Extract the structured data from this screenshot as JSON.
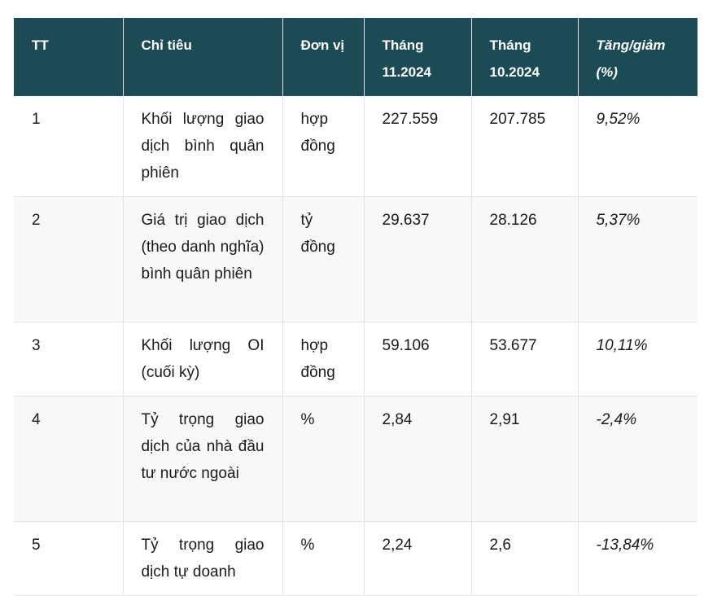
{
  "headers": [
    "TT",
    "Chỉ tiêu",
    "Đơn vị",
    "Tháng 11.2024",
    "Tháng 10.2024",
    "Tăng/giảm (%)"
  ],
  "rows": [
    {
      "tt": "1",
      "chi_tieu": "Khối lượng giao dịch bình quân phiên",
      "don_vi": "hợp đồng",
      "thang_11": "227.559",
      "thang_10": "207.785",
      "tang_giam": "9,52%"
    },
    {
      "tt": "2",
      "chi_tieu": "Giá trị giao dịch (theo danh nghĩa) bình quân phiên",
      "don_vi": "tỷ đồng",
      "thang_11": "29.637",
      "thang_10": "28.126",
      "tang_giam": "5,37%"
    },
    {
      "tt": "3",
      "chi_tieu": "Khối lượng OI (cuối kỳ)",
      "don_vi": "hợp đồng",
      "thang_11": "59.106",
      "thang_10": "53.677",
      "tang_giam": "10,11%"
    },
    {
      "tt": "4",
      "chi_tieu": "Tỷ trọng giao dịch của nhà đầu tư nước ngoài",
      "don_vi": "%",
      "thang_11": "2,84",
      "thang_10": "2,91",
      "tang_giam": "-2,4%"
    },
    {
      "tt": "5",
      "chi_tieu": "Tỷ trọng giao dịch tự doanh",
      "don_vi": "%",
      "thang_11": "2,24",
      "thang_10": "2,6",
      "tang_giam": "-13,84%"
    }
  ]
}
